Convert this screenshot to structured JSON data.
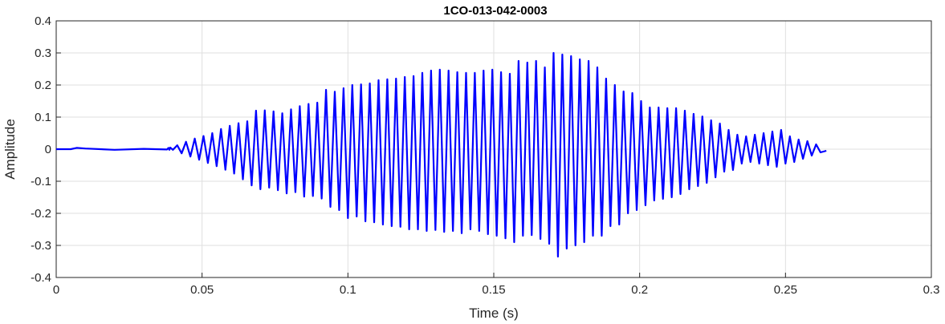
{
  "chart_data": {
    "type": "line",
    "title": "1CO-013-042-0003",
    "xlabel": "Time (s)",
    "ylabel": "Amplitude",
    "xlim": [
      0,
      0.3
    ],
    "ylim": [
      -0.4,
      0.4
    ],
    "xticks": [
      0,
      0.05,
      0.1,
      0.15,
      0.2,
      0.25,
      0.3
    ],
    "xtick_labels": [
      "0",
      "0.05",
      "0.1",
      "0.15",
      "0.2",
      "0.25",
      "0.3"
    ],
    "yticks": [
      0.4,
      0.3,
      0.2,
      0.1,
      0,
      -0.1,
      -0.2,
      -0.3,
      -0.4
    ],
    "ytick_labels": [
      "0.4",
      "0.3",
      "0.2",
      "0.1",
      "0",
      "-0.1",
      "-0.2",
      "-0.3",
      "-0.4"
    ],
    "grid": true,
    "line_color": "#0000ff",
    "series": [
      {
        "signal_duration": 0.264,
        "points": [
          [
            0,
            0
          ],
          [
            0.005,
            0
          ],
          [
            0.007,
            0.004
          ],
          [
            0.01,
            0.002
          ],
          [
            0.02,
            -0.002
          ],
          [
            0.03,
            0.001
          ],
          [
            0.038,
            -0.001
          ],
          [
            0.0385,
            0.004
          ],
          [
            0.0388,
            -0.002
          ],
          [
            0.0391,
            0.005
          ],
          [
            0.04,
            -0.002
          ],
          [
            0.0415,
            0.012
          ],
          [
            0.043,
            -0.013
          ],
          [
            0.0445,
            0.023
          ],
          [
            0.046,
            -0.023
          ],
          [
            0.0475,
            0.033
          ],
          [
            0.049,
            -0.033
          ],
          [
            0.0505,
            0.041
          ],
          [
            0.052,
            -0.043
          ],
          [
            0.0535,
            0.05
          ],
          [
            0.055,
            -0.053
          ],
          [
            0.0565,
            0.063
          ],
          [
            0.058,
            -0.064
          ],
          [
            0.0595,
            0.073
          ],
          [
            0.061,
            -0.076
          ],
          [
            0.0625,
            0.081
          ],
          [
            0.064,
            -0.094
          ],
          [
            0.0655,
            0.087
          ],
          [
            0.067,
            -0.113
          ],
          [
            0.0685,
            0.12
          ],
          [
            0.07,
            -0.125
          ],
          [
            0.0715,
            0.121
          ],
          [
            0.073,
            -0.12
          ],
          [
            0.0745,
            0.118
          ],
          [
            0.076,
            -0.128
          ],
          [
            0.0775,
            0.112
          ],
          [
            0.079,
            -0.138
          ],
          [
            0.0805,
            0.124
          ],
          [
            0.082,
            -0.134
          ],
          [
            0.0835,
            0.134
          ],
          [
            0.085,
            -0.148
          ],
          [
            0.0865,
            0.141
          ],
          [
            0.088,
            -0.146
          ],
          [
            0.0895,
            0.145
          ],
          [
            0.091,
            -0.154
          ],
          [
            0.0925,
            0.185
          ],
          [
            0.094,
            -0.18
          ],
          [
            0.0955,
            0.179
          ],
          [
            0.097,
            -0.19
          ],
          [
            0.0985,
            0.19
          ],
          [
            0.1,
            -0.215
          ],
          [
            0.1015,
            0.2
          ],
          [
            0.103,
            -0.21
          ],
          [
            0.1045,
            0.202
          ],
          [
            0.106,
            -0.225
          ],
          [
            0.1075,
            0.205
          ],
          [
            0.109,
            -0.228
          ],
          [
            0.1105,
            0.215
          ],
          [
            0.112,
            -0.235
          ],
          [
            0.1135,
            0.218
          ],
          [
            0.115,
            -0.24
          ],
          [
            0.1165,
            0.22
          ],
          [
            0.118,
            -0.242
          ],
          [
            0.1195,
            0.225
          ],
          [
            0.121,
            -0.25
          ],
          [
            0.1225,
            0.228
          ],
          [
            0.124,
            -0.25
          ],
          [
            0.1255,
            0.238
          ],
          [
            0.127,
            -0.255
          ],
          [
            0.1285,
            0.245
          ],
          [
            0.13,
            -0.252
          ],
          [
            0.1315,
            0.248
          ],
          [
            0.133,
            -0.258
          ],
          [
            0.1345,
            0.245
          ],
          [
            0.136,
            -0.255
          ],
          [
            0.1375,
            0.24
          ],
          [
            0.139,
            -0.262
          ],
          [
            0.1405,
            0.238
          ],
          [
            0.142,
            -0.25
          ],
          [
            0.1435,
            0.238
          ],
          [
            0.145,
            -0.255
          ],
          [
            0.1465,
            0.245
          ],
          [
            0.148,
            -0.265
          ],
          [
            0.1495,
            0.248
          ],
          [
            0.151,
            -0.27
          ],
          [
            0.1525,
            0.24
          ],
          [
            0.154,
            -0.278
          ],
          [
            0.1555,
            0.235
          ],
          [
            0.157,
            -0.29
          ],
          [
            0.1585,
            0.275
          ],
          [
            0.16,
            -0.27
          ],
          [
            0.1615,
            0.27
          ],
          [
            0.163,
            -0.268
          ],
          [
            0.1645,
            0.275
          ],
          [
            0.166,
            -0.28
          ],
          [
            0.1675,
            0.255
          ],
          [
            0.169,
            -0.295
          ],
          [
            0.1705,
            0.3
          ],
          [
            0.172,
            -0.335
          ],
          [
            0.1735,
            0.295
          ],
          [
            0.175,
            -0.31
          ],
          [
            0.1765,
            0.29
          ],
          [
            0.178,
            -0.3
          ],
          [
            0.1795,
            0.28
          ],
          [
            0.181,
            -0.29
          ],
          [
            0.1825,
            0.275
          ],
          [
            0.184,
            -0.27
          ],
          [
            0.1855,
            0.255
          ],
          [
            0.187,
            -0.27
          ],
          [
            0.1885,
            0.22
          ],
          [
            0.19,
            -0.24
          ],
          [
            0.1915,
            0.2
          ],
          [
            0.193,
            -0.235
          ],
          [
            0.1945,
            0.18
          ],
          [
            0.196,
            -0.2
          ],
          [
            0.1975,
            0.175
          ],
          [
            0.199,
            -0.19
          ],
          [
            0.2005,
            0.15
          ],
          [
            0.202,
            -0.175
          ],
          [
            0.2035,
            0.13
          ],
          [
            0.205,
            -0.16
          ],
          [
            0.2065,
            0.13
          ],
          [
            0.208,
            -0.155
          ],
          [
            0.2095,
            0.128
          ],
          [
            0.211,
            -0.15
          ],
          [
            0.2125,
            0.128
          ],
          [
            0.214,
            -0.14
          ],
          [
            0.2155,
            0.12
          ],
          [
            0.217,
            -0.125
          ],
          [
            0.2185,
            0.11
          ],
          [
            0.22,
            -0.115
          ],
          [
            0.2215,
            0.102
          ],
          [
            0.223,
            -0.105
          ],
          [
            0.2245,
            0.09
          ],
          [
            0.226,
            -0.088
          ],
          [
            0.2275,
            0.08
          ],
          [
            0.229,
            -0.07
          ],
          [
            0.2305,
            0.06
          ],
          [
            0.232,
            -0.065
          ],
          [
            0.2335,
            0.045
          ],
          [
            0.235,
            -0.045
          ],
          [
            0.2365,
            0.04
          ],
          [
            0.238,
            -0.04
          ],
          [
            0.2395,
            0.045
          ],
          [
            0.241,
            -0.045
          ],
          [
            0.2425,
            0.05
          ],
          [
            0.244,
            -0.05
          ],
          [
            0.2455,
            0.055
          ],
          [
            0.247,
            -0.055
          ],
          [
            0.2485,
            0.06
          ],
          [
            0.25,
            -0.045
          ],
          [
            0.2515,
            0.04
          ],
          [
            0.253,
            -0.04
          ],
          [
            0.2545,
            0.03
          ],
          [
            0.256,
            -0.03
          ],
          [
            0.2575,
            0.025
          ],
          [
            0.259,
            -0.02
          ],
          [
            0.2605,
            0.015
          ],
          [
            0.262,
            -0.01
          ],
          [
            0.264,
            -0.005
          ]
        ]
      }
    ]
  }
}
